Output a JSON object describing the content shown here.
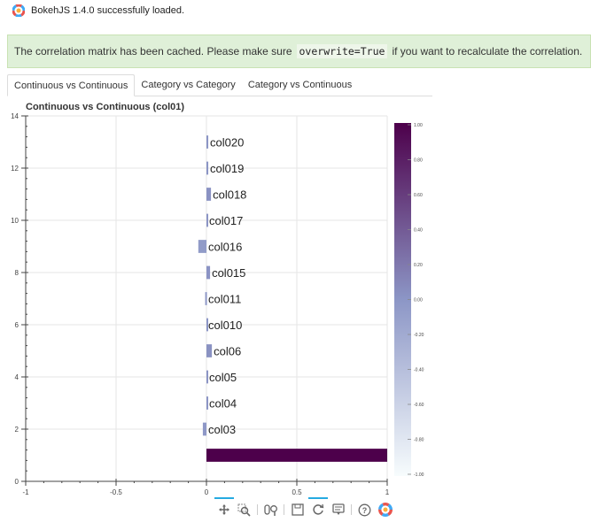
{
  "status": {
    "loaded_text": "BokehJS 1.4.0 successfully loaded."
  },
  "notice": {
    "before": "The correlation matrix has been cached. Please make sure",
    "code": "overwrite=True",
    "after": "if you want to recalculate the correlation."
  },
  "tabs": [
    {
      "label": "Continuous vs Continuous",
      "active": true
    },
    {
      "label": "Category vs Category",
      "active": false
    },
    {
      "label": "Category vs Continuous",
      "active": false
    }
  ],
  "toolbar": {
    "icons": [
      "pan-icon",
      "box-zoom-icon",
      "wheel-zoom-icon",
      "save-icon",
      "reset-icon",
      "hover-icon",
      "help-icon",
      "bokeh-logo-icon"
    ]
  },
  "chart_data": {
    "type": "bar",
    "orientation": "horizontal",
    "title": "Continuous vs Continuous (col01)",
    "xlim": [
      -1,
      1
    ],
    "ylim": [
      0,
      14
    ],
    "x_ticks": [
      -1,
      -0.5,
      0,
      0.5,
      1
    ],
    "x_tick_labels": [
      "-1",
      "-0.5",
      "0",
      "0.5",
      "1"
    ],
    "y_ticks": [
      0,
      2,
      4,
      6,
      8,
      10,
      12,
      14
    ],
    "grid": true,
    "bars": [
      {
        "label": "",
        "y": 1,
        "value": 1.0
      },
      {
        "label": "col03",
        "y": 2,
        "value": -0.02
      },
      {
        "label": "col04",
        "y": 3,
        "value": 0.005
      },
      {
        "label": "col05",
        "y": 4,
        "value": 0.005
      },
      {
        "label": "col06",
        "y": 5,
        "value": 0.03
      },
      {
        "label": "col010",
        "y": 6,
        "value": 0.0
      },
      {
        "label": "col011",
        "y": 7,
        "value": -0.007
      },
      {
        "label": "col015",
        "y": 8,
        "value": 0.02
      },
      {
        "label": "col016",
        "y": 9,
        "value": -0.045
      },
      {
        "label": "col017",
        "y": 10,
        "value": 0.005
      },
      {
        "label": "col018",
        "y": 11,
        "value": 0.025
      },
      {
        "label": "col019",
        "y": 12,
        "value": 0.01
      },
      {
        "label": "col020",
        "y": 13,
        "value": 0.01
      }
    ],
    "colorbar": {
      "range": [
        -1,
        1
      ],
      "tick_labels": [
        "1.00",
        "0.80",
        "0.60",
        "0.40",
        "0.20",
        "0.00",
        "-0.20",
        "-0.40",
        "-0.60",
        "-0.80",
        "-1.00"
      ],
      "colors": [
        "#f7fcfd",
        "#8c96c6",
        "#4d004b"
      ]
    }
  }
}
